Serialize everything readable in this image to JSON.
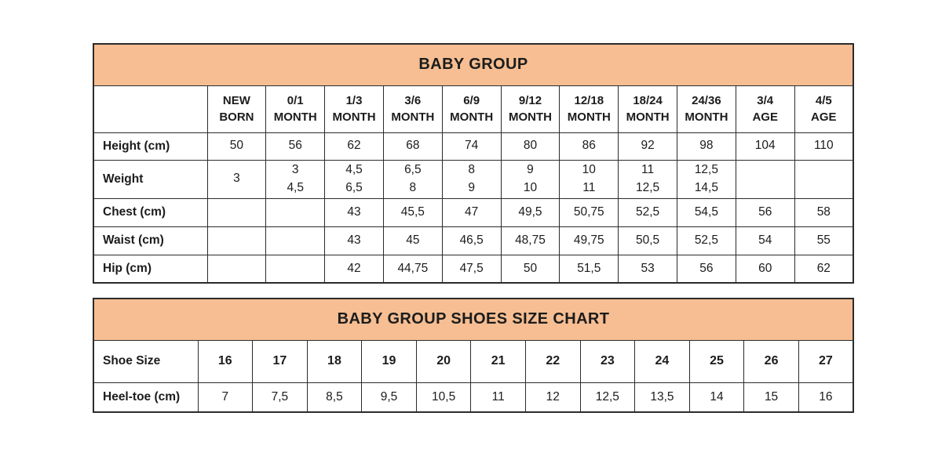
{
  "colors": {
    "header_bg": "#F6BE92",
    "border": "#2b2b2b",
    "text": "#1c1c1c",
    "background": "#ffffff"
  },
  "size_table": {
    "title": "BABY GROUP",
    "corner_label": "",
    "columns": [
      "NEW\nBORN",
      "0/1\nMONTH",
      "1/3\nMONTH",
      "3/6\nMONTH",
      "6/9\nMONTH",
      "9/12\nMONTH",
      "12/18\nMONTH",
      "18/24\nMONTH",
      "24/36\nMONTH",
      "3/4\nAGE",
      "4/5\nAGE"
    ],
    "rows": [
      {
        "key": "height",
        "label": "Height (cm)",
        "bold_values": false,
        "values": [
          "50",
          "56",
          "62",
          "68",
          "74",
          "80",
          "86",
          "92",
          "98",
          "104",
          "110"
        ]
      },
      {
        "key": "weight",
        "label": "Weight",
        "bold_values": false,
        "values": [
          "3",
          "3\n4,5",
          "4,5\n6,5",
          "6,5\n8",
          "8\n9",
          "9\n10",
          "10\n11",
          "11\n12,5",
          "12,5\n14,5",
          "",
          ""
        ]
      },
      {
        "key": "chest",
        "label": "Chest (cm)",
        "bold_values": false,
        "values": [
          "",
          "",
          "43",
          "45,5",
          "47",
          "49,5",
          "50,75",
          "52,5",
          "54,5",
          "56",
          "58"
        ]
      },
      {
        "key": "waist",
        "label": "Waist (cm)",
        "bold_values": false,
        "values": [
          "",
          "",
          "43",
          "45",
          "46,5",
          "48,75",
          "49,75",
          "50,5",
          "52,5",
          "54",
          "55"
        ]
      },
      {
        "key": "hip",
        "label": "Hip (cm)",
        "bold_values": false,
        "values": [
          "",
          "",
          "42",
          "44,75",
          "47,5",
          "50",
          "51,5",
          "53",
          "56",
          "60",
          "62"
        ]
      }
    ]
  },
  "shoes_table": {
    "title": "BABY GROUP SHOES SIZE CHART",
    "rows": [
      {
        "key": "shoe",
        "label": "Shoe Size",
        "bold_values": true,
        "values": [
          "16",
          "17",
          "18",
          "19",
          "20",
          "21",
          "22",
          "23",
          "24",
          "25",
          "26",
          "27"
        ]
      },
      {
        "key": "heel",
        "label": "Heel-toe (cm)",
        "bold_values": false,
        "values": [
          "7",
          "7,5",
          "8,5",
          "9,5",
          "10,5",
          "11",
          "12",
          "12,5",
          "13,5",
          "14",
          "15",
          "16"
        ]
      }
    ]
  }
}
